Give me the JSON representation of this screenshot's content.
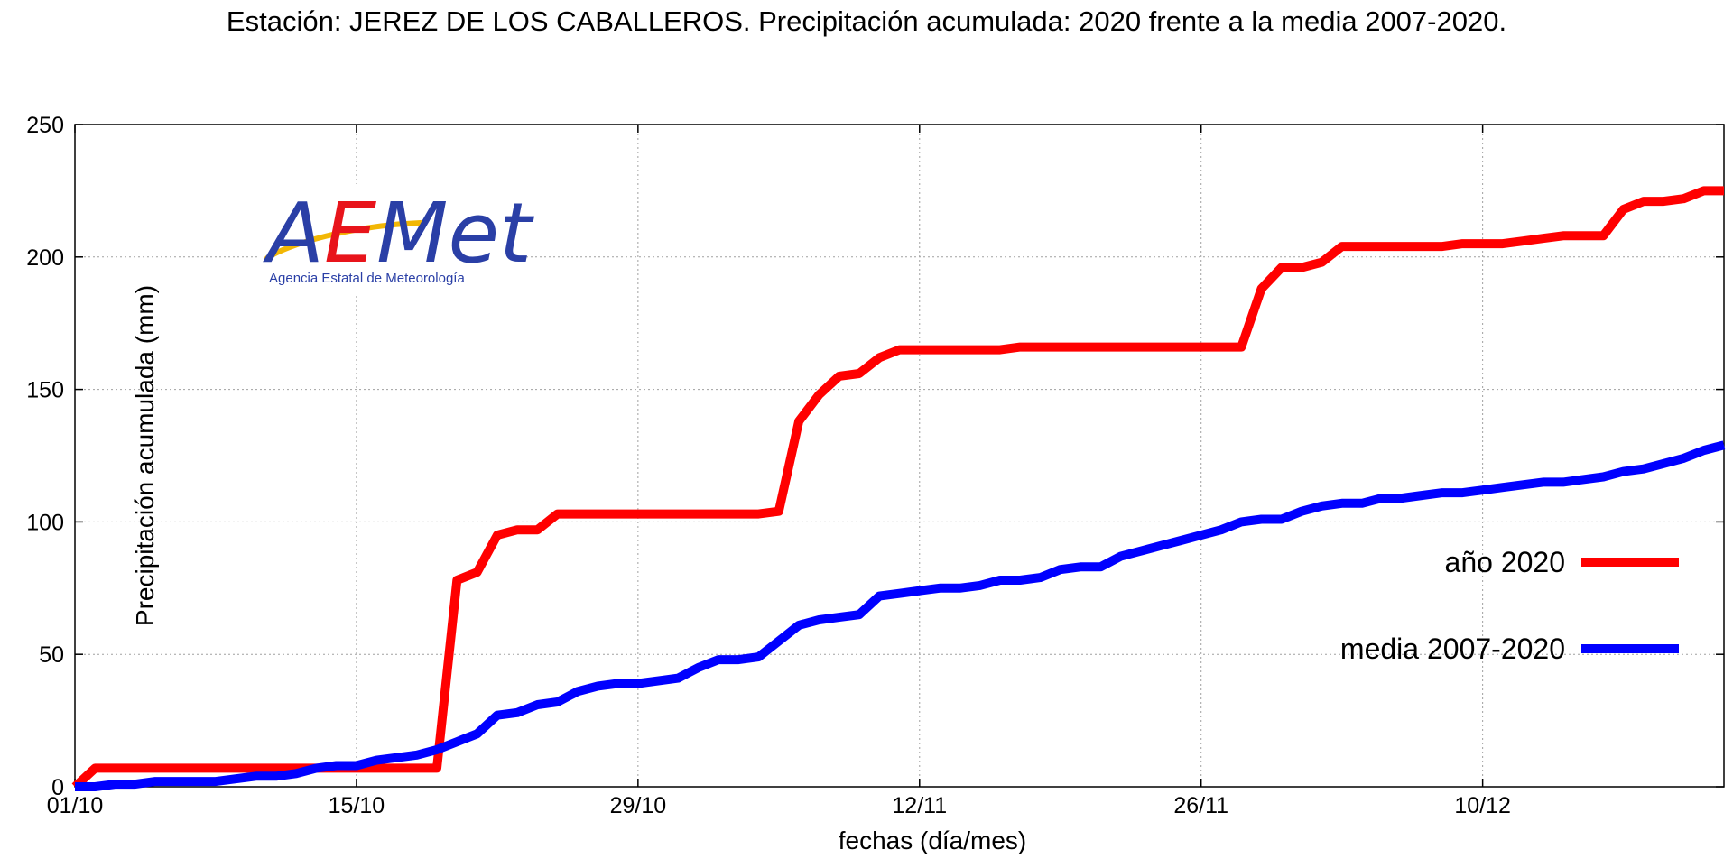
{
  "chart_data": {
    "type": "line",
    "title": "Estación: JEREZ DE LOS CABALLEROS. Precipitación acumulada: 2020 frente a la media 2007-2020.",
    "xlabel": "fechas (día/mes)",
    "ylabel": "Precipitación acumulada (mm)",
    "x_start_label": "01/10",
    "x_tick_labels": [
      "01/10",
      "15/10",
      "29/10",
      "12/11",
      "26/11",
      "10/12"
    ],
    "xlim_days": [
      0,
      75
    ],
    "ylim": [
      0,
      250
    ],
    "y_ticks": [
      0,
      50,
      100,
      150,
      200,
      250
    ],
    "grid": true,
    "legend_position": "right-center",
    "series": [
      {
        "name": "año 2020",
        "color": "#ff0000",
        "points": [
          [
            0,
            0
          ],
          [
            1,
            7
          ],
          [
            2,
            7
          ],
          [
            3,
            7
          ],
          [
            4,
            7
          ],
          [
            5,
            7
          ],
          [
            6,
            7
          ],
          [
            7,
            7
          ],
          [
            8,
            7
          ],
          [
            9,
            7
          ],
          [
            10,
            7
          ],
          [
            11,
            7
          ],
          [
            12,
            7
          ],
          [
            13,
            7
          ],
          [
            14,
            7
          ],
          [
            15,
            7
          ],
          [
            16,
            7
          ],
          [
            17,
            7
          ],
          [
            18,
            7
          ],
          [
            19,
            78
          ],
          [
            20,
            81
          ],
          [
            21,
            95
          ],
          [
            22,
            97
          ],
          [
            23,
            97
          ],
          [
            24,
            103
          ],
          [
            25,
            103
          ],
          [
            26,
            103
          ],
          [
            27,
            103
          ],
          [
            28,
            103
          ],
          [
            29,
            103
          ],
          [
            30,
            103
          ],
          [
            31,
            103
          ],
          [
            32,
            103
          ],
          [
            33,
            103
          ],
          [
            34,
            103
          ],
          [
            35,
            104
          ],
          [
            36,
            138
          ],
          [
            37,
            148
          ],
          [
            38,
            155
          ],
          [
            39,
            156
          ],
          [
            40,
            162
          ],
          [
            41,
            165
          ],
          [
            42,
            165
          ],
          [
            43,
            165
          ],
          [
            44,
            165
          ],
          [
            45,
            165
          ],
          [
            46,
            165
          ],
          [
            47,
            166
          ],
          [
            48,
            166
          ],
          [
            49,
            166
          ],
          [
            50,
            166
          ],
          [
            51,
            166
          ],
          [
            52,
            166
          ],
          [
            53,
            166
          ],
          [
            54,
            166
          ],
          [
            55,
            166
          ],
          [
            56,
            166
          ],
          [
            57,
            166
          ],
          [
            58,
            166
          ],
          [
            59,
            188
          ],
          [
            60,
            196
          ],
          [
            61,
            196
          ],
          [
            62,
            198
          ],
          [
            63,
            204
          ],
          [
            64,
            204
          ],
          [
            65,
            204
          ],
          [
            66,
            204
          ],
          [
            67,
            204
          ],
          [
            68,
            204
          ],
          [
            69,
            205
          ],
          [
            70,
            205
          ],
          [
            71,
            205
          ],
          [
            72,
            206
          ],
          [
            73,
            207
          ],
          [
            74,
            208
          ],
          [
            75,
            208
          ],
          [
            76,
            208
          ],
          [
            77,
            218
          ],
          [
            78,
            221
          ],
          [
            79,
            221
          ],
          [
            80,
            222
          ],
          [
            81,
            225
          ],
          [
            82,
            225
          ]
        ]
      },
      {
        "name": "media 2007-2020",
        "color": "#0000ff",
        "points": [
          [
            0,
            0
          ],
          [
            1,
            0
          ],
          [
            2,
            1
          ],
          [
            3,
            1
          ],
          [
            4,
            2
          ],
          [
            5,
            2
          ],
          [
            6,
            2
          ],
          [
            7,
            2
          ],
          [
            8,
            3
          ],
          [
            9,
            4
          ],
          [
            10,
            4
          ],
          [
            11,
            5
          ],
          [
            12,
            7
          ],
          [
            13,
            8
          ],
          [
            14,
            8
          ],
          [
            15,
            10
          ],
          [
            16,
            11
          ],
          [
            17,
            12
          ],
          [
            18,
            14
          ],
          [
            19,
            17
          ],
          [
            20,
            20
          ],
          [
            21,
            27
          ],
          [
            22,
            28
          ],
          [
            23,
            31
          ],
          [
            24,
            32
          ],
          [
            25,
            36
          ],
          [
            26,
            38
          ],
          [
            27,
            39
          ],
          [
            28,
            39
          ],
          [
            29,
            40
          ],
          [
            30,
            41
          ],
          [
            31,
            45
          ],
          [
            32,
            48
          ],
          [
            33,
            48
          ],
          [
            34,
            49
          ],
          [
            35,
            55
          ],
          [
            36,
            61
          ],
          [
            37,
            63
          ],
          [
            38,
            64
          ],
          [
            39,
            65
          ],
          [
            40,
            72
          ],
          [
            41,
            73
          ],
          [
            42,
            74
          ],
          [
            43,
            75
          ],
          [
            44,
            75
          ],
          [
            45,
            76
          ],
          [
            46,
            78
          ],
          [
            47,
            78
          ],
          [
            48,
            79
          ],
          [
            49,
            82
          ],
          [
            50,
            83
          ],
          [
            51,
            83
          ],
          [
            52,
            87
          ],
          [
            53,
            89
          ],
          [
            54,
            91
          ],
          [
            55,
            93
          ],
          [
            56,
            95
          ],
          [
            57,
            97
          ],
          [
            58,
            100
          ],
          [
            59,
            101
          ],
          [
            60,
            101
          ],
          [
            61,
            104
          ],
          [
            62,
            106
          ],
          [
            63,
            107
          ],
          [
            64,
            107
          ],
          [
            65,
            109
          ],
          [
            66,
            109
          ],
          [
            67,
            110
          ],
          [
            68,
            111
          ],
          [
            69,
            111
          ],
          [
            70,
            112
          ],
          [
            71,
            113
          ],
          [
            72,
            114
          ],
          [
            73,
            115
          ],
          [
            74,
            115
          ],
          [
            75,
            116
          ],
          [
            76,
            117
          ],
          [
            77,
            119
          ],
          [
            78,
            120
          ],
          [
            79,
            122
          ],
          [
            80,
            124
          ],
          [
            81,
            127
          ],
          [
            82,
            129
          ]
        ]
      }
    ]
  },
  "logo": {
    "main_text": "AEMet",
    "subtitle": "Agencia Estatal de Meteorología"
  },
  "colors": {
    "red": "#ff0000",
    "blue": "#0000ff",
    "grid": "#a0a0a0",
    "logo_blue": "#2a3fa6",
    "logo_yellow": "#f2b705",
    "logo_red": "#e8141b"
  }
}
